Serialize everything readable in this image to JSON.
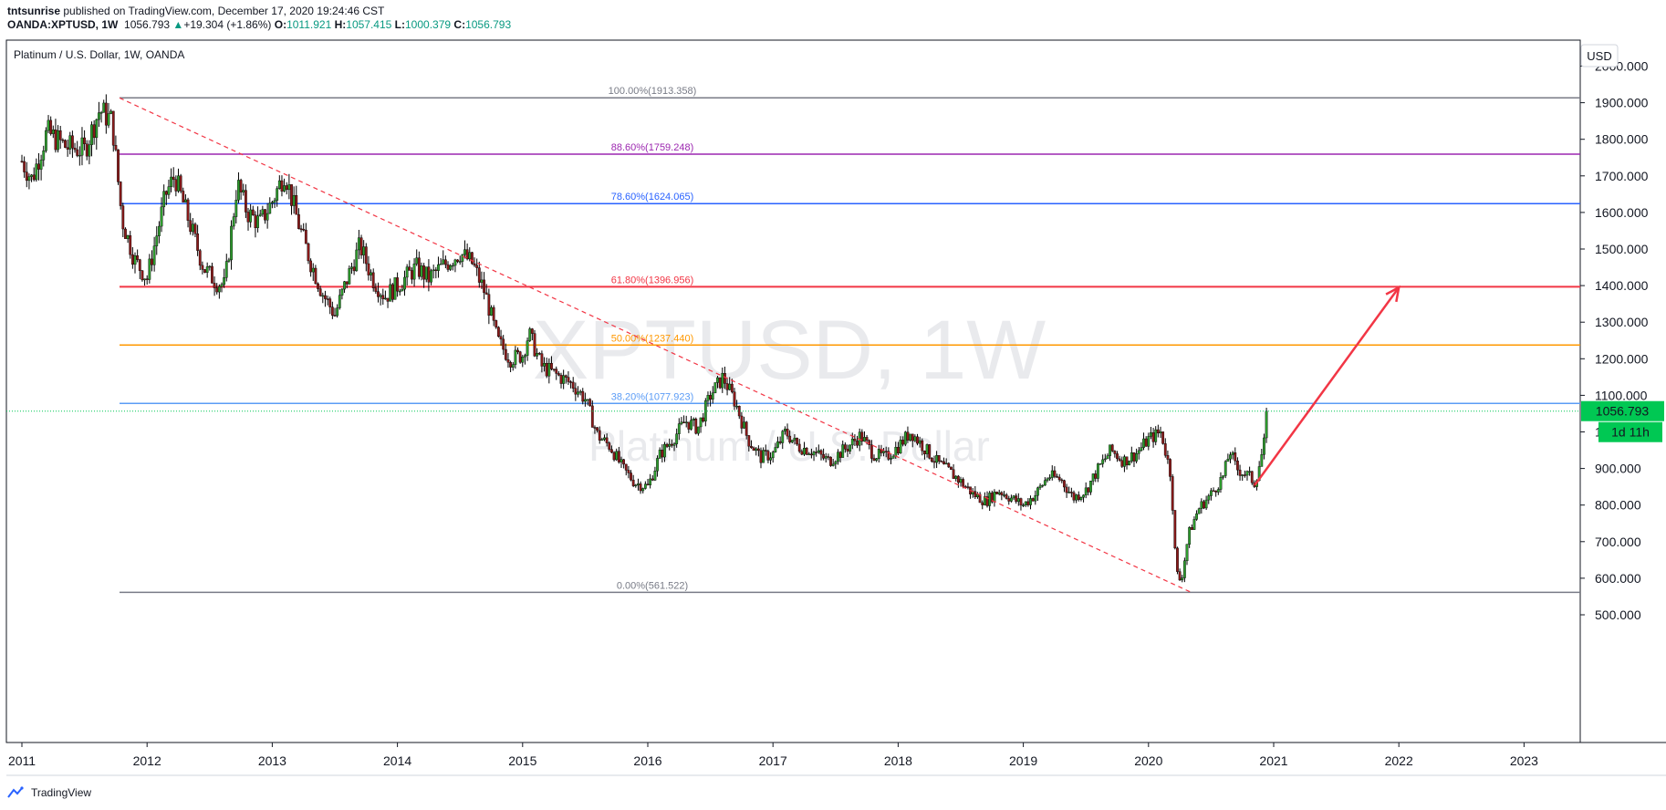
{
  "header": {
    "author": "tntsunrise",
    "published": "published on TradingView.com, December 17, 2020 19:24:46 CST",
    "symbol": "OANDA:XPTUSD, 1W",
    "price": "1056.793",
    "arrow": "▲",
    "change": "+19.304 (+1.86%)",
    "o_label": "O:",
    "o_value": "1011.921",
    "h_label": "H:",
    "h_value": "1057.415",
    "l_label": "L:",
    "l_value": "1000.379",
    "c_label": "C:",
    "c_value": "1056.793"
  },
  "pane": {
    "legend": "Platinum / U.S. Dollar, 1W, OANDA",
    "watermark_symbol": "XPTUSD, 1W",
    "watermark_name": "Platinum / U.S. Dollar",
    "currency_button": "USD",
    "last_price_label": "1056.793",
    "countdown_label": "1d 11h"
  },
  "footer": {
    "brand": "TradingView"
  },
  "colors": {
    "up": "#26a69a",
    "down": "#8b1a1a",
    "up_candle": "#2e9d2e",
    "fib_100": "#787b86",
    "fib_886": "#9c27b0",
    "fib_786": "#2962ff",
    "fib_618": "#f23645",
    "fib_50": "#ff9800",
    "fib_382": "#5b9cf6",
    "fib_0": "#787b86",
    "arrow": "#f23645",
    "last_price": "#00c853"
  },
  "chart_data": {
    "type": "candlestick",
    "title": "Platinum / U.S. Dollar, 1W, OANDA",
    "xlabel": "",
    "ylabel": "",
    "ylim": [
      450,
      2080
    ],
    "xlim": [
      2011.0,
      2023.95
    ],
    "y_ticks": [
      2000,
      1900,
      1800,
      1700,
      1600,
      1500,
      1400,
      1300,
      1200,
      1100,
      1000,
      900,
      800,
      700,
      600,
      500
    ],
    "y_tick_labels": [
      "2000.000",
      "1900.000",
      "1800.000",
      "1700.000",
      "1600.000",
      "1500.000",
      "1400.000",
      "1300.000",
      "1200.000",
      "1100.000",
      "1000.000",
      "900.000",
      "800.000",
      "700.000",
      "600.000",
      "500.000"
    ],
    "x_ticks": [
      2011,
      2012,
      2013,
      2014,
      2015,
      2016,
      2017,
      2018,
      2019,
      2020,
      2021,
      2022,
      2023
    ],
    "x_tick_labels": [
      "2011",
      "2012",
      "2013",
      "2014",
      "2015",
      "2016",
      "2017",
      "2018",
      "2019",
      "2020",
      "2021",
      "2022",
      "2023"
    ],
    "grid": false,
    "price_path": [
      [
        2011.0,
        1740
      ],
      [
        2011.08,
        1690
      ],
      [
        2011.2,
        1820
      ],
      [
        2011.35,
        1780
      ],
      [
        2011.5,
        1770
      ],
      [
        2011.62,
        1880
      ],
      [
        2011.72,
        1850
      ],
      [
        2011.8,
        1580
      ],
      [
        2011.9,
        1470
      ],
      [
        2012.0,
        1420
      ],
      [
        2012.15,
        1650
      ],
      [
        2012.22,
        1700
      ],
      [
        2012.35,
        1560
      ],
      [
        2012.45,
        1450
      ],
      [
        2012.55,
        1410
      ],
      [
        2012.62,
        1400
      ],
      [
        2012.72,
        1680
      ],
      [
        2012.8,
        1600
      ],
      [
        2012.9,
        1570
      ],
      [
        2013.0,
        1630
      ],
      [
        2013.1,
        1710
      ],
      [
        2013.2,
        1580
      ],
      [
        2013.3,
        1470
      ],
      [
        2013.4,
        1380
      ],
      [
        2013.5,
        1320
      ],
      [
        2013.6,
        1420
      ],
      [
        2013.7,
        1510
      ],
      [
        2013.8,
        1420
      ],
      [
        2013.9,
        1370
      ],
      [
        2014.0,
        1400
      ],
      [
        2014.15,
        1450
      ],
      [
        2014.25,
        1420
      ],
      [
        2014.35,
        1450
      ],
      [
        2014.5,
        1490
      ],
      [
        2014.6,
        1460
      ],
      [
        2014.7,
        1380
      ],
      [
        2014.8,
        1250
      ],
      [
        2014.9,
        1200
      ],
      [
        2015.0,
        1210
      ],
      [
        2015.05,
        1270
      ],
      [
        2015.15,
        1180
      ],
      [
        2015.3,
        1150
      ],
      [
        2015.4,
        1130
      ],
      [
        2015.5,
        1090
      ],
      [
        2015.6,
        990
      ],
      [
        2015.7,
        960
      ],
      [
        2015.8,
        900
      ],
      [
        2015.9,
        860
      ],
      [
        2016.0,
        850
      ],
      [
        2016.1,
        940
      ],
      [
        2016.2,
        980
      ],
      [
        2016.3,
        1030
      ],
      [
        2016.4,
        1010
      ],
      [
        2016.5,
        1100
      ],
      [
        2016.6,
        1150
      ],
      [
        2016.7,
        1080
      ],
      [
        2016.8,
        980
      ],
      [
        2016.9,
        930
      ],
      [
        2017.0,
        940
      ],
      [
        2017.1,
        1000
      ],
      [
        2017.2,
        960
      ],
      [
        2017.3,
        950
      ],
      [
        2017.45,
        920
      ],
      [
        2017.6,
        960
      ],
      [
        2017.7,
        990
      ],
      [
        2017.8,
        940
      ],
      [
        2017.9,
        930
      ],
      [
        2018.0,
        960
      ],
      [
        2018.1,
        1000
      ],
      [
        2018.2,
        960
      ],
      [
        2018.3,
        920
      ],
      [
        2018.45,
        880
      ],
      [
        2018.6,
        830
      ],
      [
        2018.7,
        810
      ],
      [
        2018.8,
        840
      ],
      [
        2018.9,
        820
      ],
      [
        2019.0,
        800
      ],
      [
        2019.1,
        830
      ],
      [
        2019.2,
        880
      ],
      [
        2019.3,
        870
      ],
      [
        2019.4,
        820
      ],
      [
        2019.5,
        840
      ],
      [
        2019.6,
        900
      ],
      [
        2019.7,
        950
      ],
      [
        2019.8,
        920
      ],
      [
        2019.9,
        940
      ],
      [
        2020.0,
        980
      ],
      [
        2020.1,
        1000
      ],
      [
        2020.18,
        880
      ],
      [
        2020.22,
        620
      ],
      [
        2020.26,
        590
      ],
      [
        2020.32,
        720
      ],
      [
        2020.4,
        790
      ],
      [
        2020.5,
        830
      ],
      [
        2020.6,
        880
      ],
      [
        2020.65,
        950
      ],
      [
        2020.7,
        900
      ],
      [
        2020.8,
        880
      ],
      [
        2020.85,
        860
      ],
      [
        2020.92,
        960
      ],
      [
        2020.96,
        1057
      ]
    ],
    "fib_levels": [
      {
        "label": "100.00%(1913.358)",
        "value": 1913.358,
        "color": "#787b86"
      },
      {
        "label": "88.60%(1759.248)",
        "value": 1759.248,
        "color": "#9c27b0"
      },
      {
        "label": "78.60%(1624.065)",
        "value": 1624.065,
        "color": "#2962ff"
      },
      {
        "label": "61.80%(1396.956)",
        "value": 1396.956,
        "color": "#f23645"
      },
      {
        "label": "50.00%(1237.440)",
        "value": 1237.44,
        "color": "#ff9800"
      },
      {
        "label": "38.20%(1077.923)",
        "value": 1077.923,
        "color": "#5b9cf6"
      },
      {
        "label": "0.00%(561.522)",
        "value": 561.522,
        "color": "#787b86"
      }
    ],
    "fib_x_range": [
      2011.78,
      2024.0
    ],
    "trendline": {
      "from": [
        2011.78,
        1913
      ],
      "to": [
        2020.35,
        560
      ]
    },
    "projection_arrow": {
      "from": [
        2020.85,
        855
      ],
      "to": [
        2022.0,
        1395
      ]
    },
    "last_price": 1056.793
  }
}
